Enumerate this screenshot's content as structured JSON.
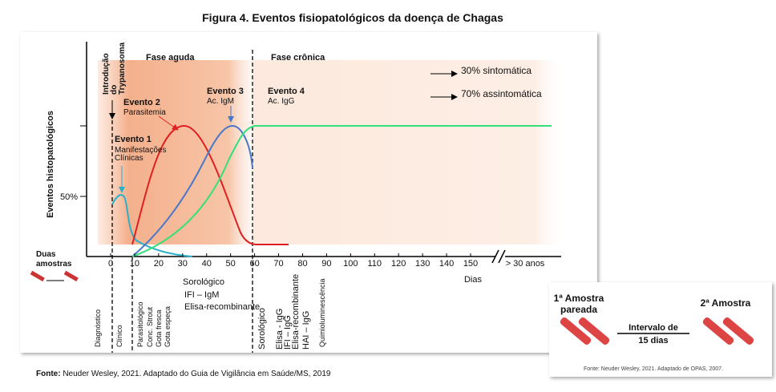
{
  "title": "Figura 4. Eventos fisiopatológicos da doença de Chagas",
  "y_label": "Eventos histopatológicos",
  "y_mark": "50%",
  "top_label": [
    "Introdução",
    "do",
    "Trypanosoma"
  ],
  "phases": [
    "Fase aguda",
    "Fase crônica"
  ],
  "events": [
    {
      "title": "Evento 1",
      "lines": [
        "Manifestações",
        "Clínicas"
      ]
    },
    {
      "title": "Evento 2",
      "lines": [
        "Parasitemia"
      ]
    },
    {
      "title": "Evento 3",
      "lines": [
        "Ac. IgM"
      ]
    },
    {
      "title": "Evento 4",
      "lines": [
        "Ac. IgG"
      ]
    }
  ],
  "outcomes": [
    "30% sintomática",
    "70% assintomática"
  ],
  "x_ticks": [
    0,
    10,
    20,
    30,
    40,
    50,
    60,
    70,
    80,
    90,
    100,
    110,
    120,
    130,
    140,
    150
  ],
  "x_far": "> 30 anos",
  "x_label": "Dias",
  "samples": [
    "Duas",
    "amostras"
  ],
  "acute_tests": [
    "Sorológico",
    "IFI – IgM",
    "Elisa-recombinante"
  ],
  "bottom_labels": [
    "Diagnóstico",
    "Clínico",
    "Parasitológico",
    "Conc. Strout",
    "Gota fresca",
    "Gota espeça",
    "Sorológico",
    "Elisa - IgG",
    "IFI – IgG",
    "Elisa-recombinante",
    "HAI – IgG",
    "Quimioluminescência"
  ],
  "footer": {
    "bold": "Fonte:",
    "text": " Neuder Wesley, 2021. Adaptado do Guia de Vigilância em Saúde/MS, 2019"
  },
  "inset": {
    "first": [
      "1ª Amostra",
      "pareada"
    ],
    "second": "2ª Amostra",
    "interval": [
      "Intervalo de",
      "15 dias"
    ],
    "source": "Fonte: Neuder Wesley, 2021. Adaptado de OPAS, 2007."
  }
}
